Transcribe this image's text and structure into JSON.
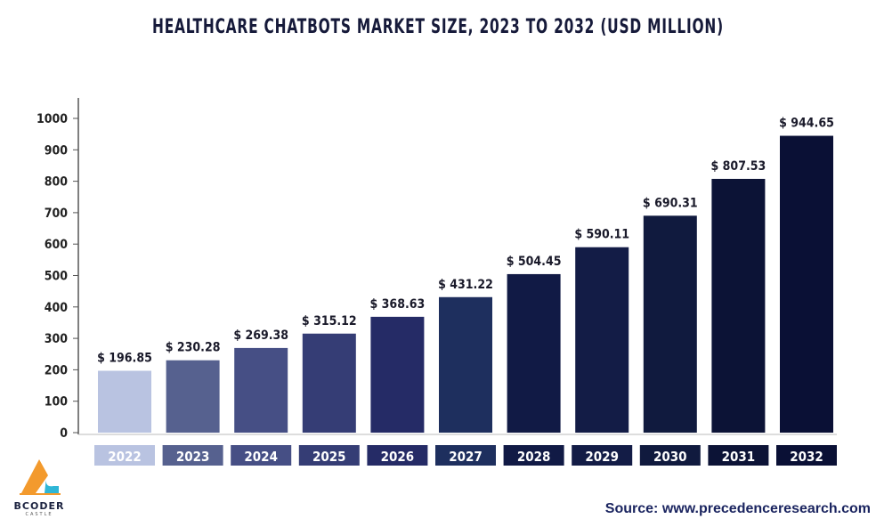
{
  "chart_data": {
    "type": "bar",
    "title": "HEALTHCARE CHATBOTS MARKET SIZE, 2023 TO 2032 (USD MILLION)",
    "categories": [
      "2022",
      "2023",
      "2024",
      "2025",
      "2026",
      "2027",
      "2028",
      "2029",
      "2030",
      "2031",
      "2032"
    ],
    "values": [
      196.85,
      230.28,
      269.38,
      315.12,
      368.63,
      431.22,
      504.45,
      590.11,
      690.31,
      807.53,
      944.65
    ],
    "data_labels": [
      "$ 196.85",
      "$ 230.28",
      "$ 269.38",
      "$ 315.12",
      "$ 368.63",
      "$ 431.22",
      "$ 504.45",
      "$ 590.11",
      "$ 690.31",
      "$ 807.53",
      "$ 944.65"
    ],
    "colors": [
      "#b9c3e1",
      "#56618f",
      "#464f85",
      "#353d75",
      "#252b66",
      "#1e2f5e",
      "#111a45",
      "#131c46",
      "#101a3e",
      "#0c1336",
      "#0a1035"
    ],
    "yticks": [
      "0",
      "100",
      "200",
      "300",
      "400",
      "500",
      "600",
      "700",
      "800",
      "900",
      "1000"
    ],
    "ylim": [
      0,
      1000
    ],
    "xlabel": "",
    "ylabel": "",
    "grid": false
  },
  "source": "Source: www.precedenceresearch.com",
  "logo": {
    "name": "BCODER",
    "sub": "CASTLE"
  }
}
